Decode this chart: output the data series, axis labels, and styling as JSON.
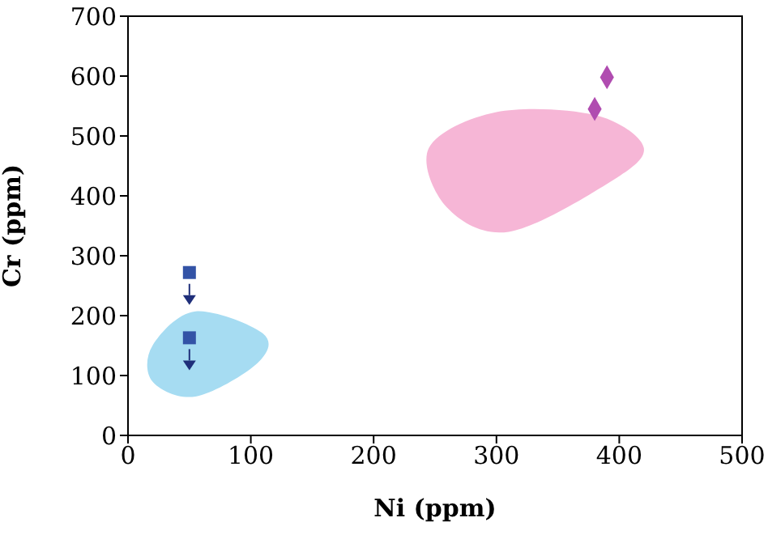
{
  "chart_data": {
    "type": "scatter",
    "xlabel": "Ni (ppm)",
    "ylabel": "Cr (ppm)",
    "xlim": [
      0,
      500
    ],
    "xticks": [
      0,
      100,
      200,
      300,
      400,
      500
    ],
    "ylim": [
      0,
      700
    ],
    "yticks": [
      0,
      100,
      200,
      300,
      400,
      500,
      600,
      700
    ],
    "grid": false,
    "legend": false,
    "series": [
      {
        "color": "#3353a6",
        "marker": "square",
        "x": [
          50,
          50
        ],
        "values": [
          272,
          163
        ]
      },
      {
        "color": "#b04cb0",
        "marker": "diamond",
        "x": [
          380,
          390
        ],
        "values": [
          545,
          598
        ]
      }
    ]
  }
}
